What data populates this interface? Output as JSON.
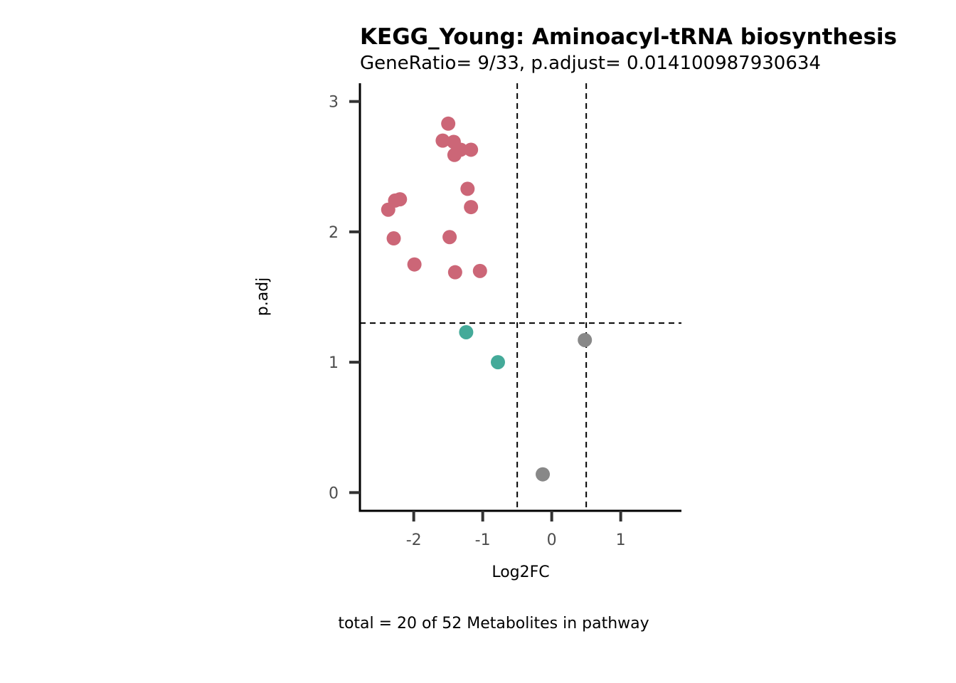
{
  "chart_data": {
    "type": "scatter",
    "title": "KEGG_Young: Aminoacyl-tRNA biosynthesis",
    "subtitle": "GeneRatio= 9/33, p.adjust= 0.014100987930634",
    "xlabel": "Log2FC",
    "ylabel": "p.adj",
    "caption": "total = 20 of 52 Metabolites in pathway",
    "xlim": [
      -2.78,
      1.88
    ],
    "ylim": [
      -0.14,
      3.14
    ],
    "x_ticks": [
      -2,
      -1,
      0,
      1
    ],
    "x_tick_labels": [
      "-2",
      "-1",
      "0",
      "1"
    ],
    "y_ticks": [
      0,
      1,
      2,
      3
    ],
    "y_tick_labels": [
      "0",
      "1",
      "2",
      "3"
    ],
    "reference_lines": {
      "vertical": [
        -0.5,
        0.5
      ],
      "horizontal": [
        1.3
      ]
    },
    "grid": false,
    "legend": "none",
    "colors": {
      "significant": "#cc6677",
      "moderate": "#44aa99",
      "nonsignificant": "#888888"
    },
    "series": [
      {
        "group": "significant",
        "points": [
          {
            "x": -1.5,
            "y": 2.83
          },
          {
            "x": -1.58,
            "y": 2.7
          },
          {
            "x": -1.42,
            "y": 2.69
          },
          {
            "x": -1.32,
            "y": 2.63
          },
          {
            "x": -1.17,
            "y": 2.63
          },
          {
            "x": -1.41,
            "y": 2.59
          },
          {
            "x": -1.22,
            "y": 2.33
          },
          {
            "x": -2.2,
            "y": 2.25
          },
          {
            "x": -2.27,
            "y": 2.24
          },
          {
            "x": -2.37,
            "y": 2.17
          },
          {
            "x": -1.17,
            "y": 2.19
          },
          {
            "x": -1.48,
            "y": 1.96
          },
          {
            "x": -2.29,
            "y": 1.95
          },
          {
            "x": -1.99,
            "y": 1.75
          },
          {
            "x": -1.04,
            "y": 1.7
          },
          {
            "x": -1.4,
            "y": 1.69
          }
        ]
      },
      {
        "group": "moderate",
        "points": [
          {
            "x": -1.24,
            "y": 1.23
          },
          {
            "x": -0.78,
            "y": 1.0
          }
        ]
      },
      {
        "group": "nonsignificant",
        "points": [
          {
            "x": 0.48,
            "y": 1.17
          },
          {
            "x": -0.13,
            "y": 0.14
          }
        ]
      }
    ]
  }
}
